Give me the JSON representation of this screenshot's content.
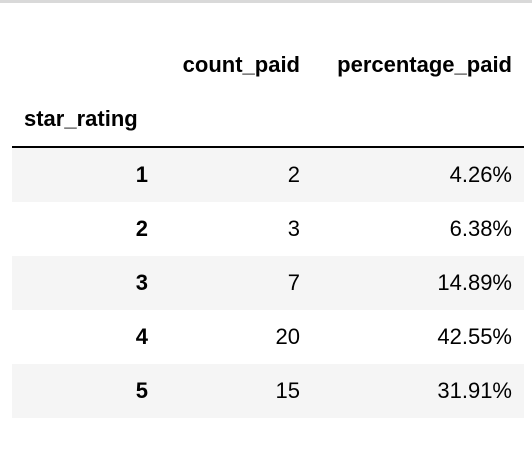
{
  "table": {
    "columns": [
      "count_paid",
      "percentage_paid"
    ],
    "index_name": "star_rating",
    "rows": [
      {
        "index": "1",
        "count_paid": "2",
        "percentage_paid": "4.26%"
      },
      {
        "index": "2",
        "count_paid": "3",
        "percentage_paid": "6.38%"
      },
      {
        "index": "3",
        "count_paid": "7",
        "percentage_paid": "14.89%"
      },
      {
        "index": "4",
        "count_paid": "20",
        "percentage_paid": "42.55%"
      },
      {
        "index": "5",
        "count_paid": "15",
        "percentage_paid": "31.91%"
      }
    ]
  },
  "colors": {
    "striped_row": "#f5f5f5",
    "header_rule": "#000000",
    "top_line": "#d9d9d9"
  }
}
